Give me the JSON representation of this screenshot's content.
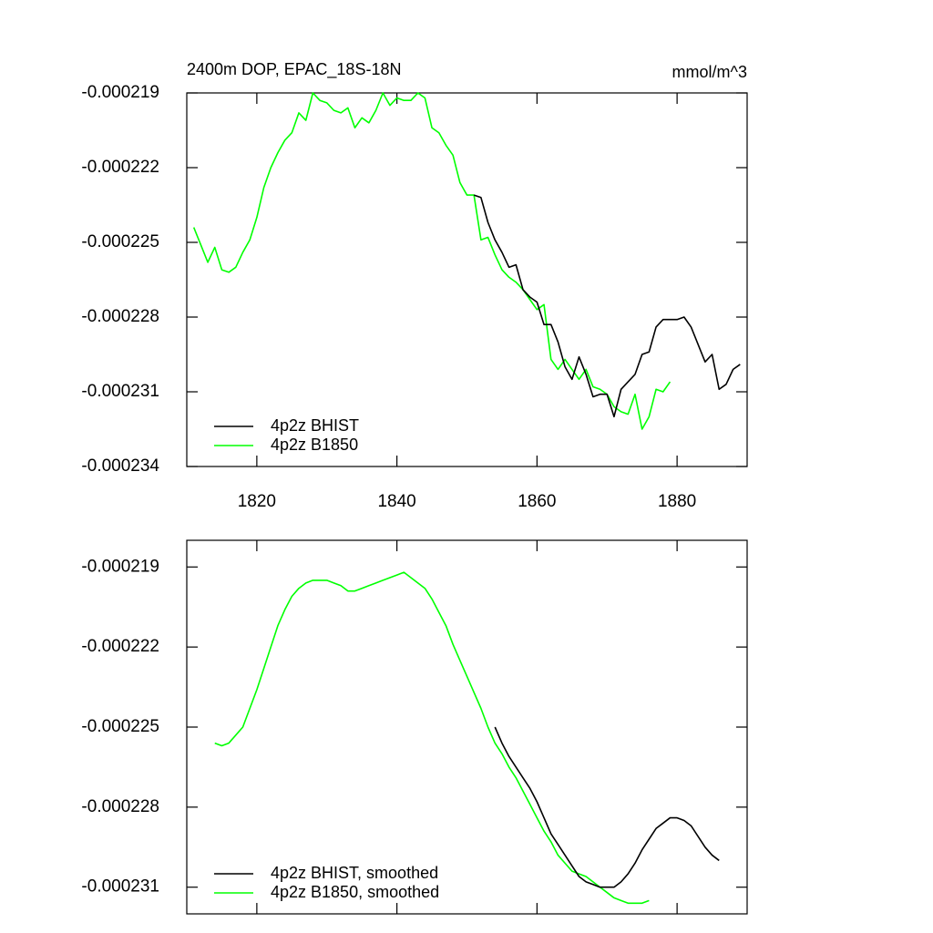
{
  "chart_data": [
    {
      "type": "line",
      "title": "2400m DOP, EPAC_18S-18N",
      "units": "mmol/m^3",
      "x": [
        1811,
        1812,
        1813,
        1814,
        1815,
        1816,
        1817,
        1818,
        1819,
        1820,
        1821,
        1822,
        1823,
        1824,
        1825,
        1826,
        1827,
        1828,
        1829,
        1830,
        1831,
        1832,
        1833,
        1834,
        1835,
        1836,
        1837,
        1838,
        1839,
        1840,
        1841,
        1842,
        1843,
        1844,
        1845,
        1846,
        1847,
        1848,
        1849,
        1850,
        1851,
        1852,
        1853,
        1854,
        1855,
        1856,
        1857,
        1858,
        1859,
        1860,
        1861,
        1862,
        1863,
        1864,
        1865,
        1866,
        1867,
        1868,
        1869,
        1870,
        1871,
        1872,
        1873,
        1874,
        1875,
        1876,
        1877,
        1878,
        1879,
        1880,
        1881,
        1882,
        1883,
        1884,
        1885,
        1886,
        1887,
        1888,
        1889
      ],
      "series": [
        {
          "name": "4p2z BHIST",
          "color": "#000000",
          "values": [
            null,
            null,
            null,
            null,
            null,
            null,
            null,
            null,
            null,
            null,
            null,
            null,
            null,
            null,
            null,
            null,
            null,
            null,
            null,
            null,
            null,
            null,
            null,
            null,
            null,
            null,
            null,
            null,
            null,
            null,
            null,
            null,
            null,
            null,
            null,
            null,
            null,
            null,
            null,
            null,
            -0.0002231,
            -0.0002232,
            -0.0002242,
            -0.0002249,
            -0.0002254,
            -0.000226,
            -0.0002259,
            -0.0002269,
            -0.0002272,
            -0.0002274,
            -0.0002283,
            -0.0002283,
            -0.000229,
            -0.00023,
            -0.0002305,
            -0.0002296,
            -0.0002303,
            -0.0002312,
            -0.0002311,
            -0.0002311,
            -0.000232,
            -0.0002309,
            -0.0002306,
            -0.0002303,
            -0.0002295,
            -0.0002294,
            -0.0002284,
            -0.0002281,
            -0.0002281,
            -0.0002281,
            -0.000228,
            -0.0002284,
            -0.0002291,
            -0.0002298,
            -0.0002295,
            -0.0002309,
            -0.0002307,
            -0.0002301,
            -0.0002299
          ]
        },
        {
          "name": "4p2z B1850",
          "color": "#00ff00",
          "values": [
            -0.0002244,
            -0.0002251,
            -0.0002258,
            -0.0002252,
            -0.0002261,
            -0.0002262,
            -0.000226,
            -0.0002254,
            -0.0002249,
            -0.000224,
            -0.0002228,
            -0.000222,
            -0.0002214,
            -0.0002209,
            -0.0002206,
            -0.0002198,
            -0.0002201,
            -0.000219,
            -0.0002193,
            -0.0002194,
            -0.0002197,
            -0.0002198,
            -0.0002196,
            -0.0002204,
            -0.00022,
            -0.0002202,
            -0.0002197,
            -0.000219,
            -0.0002195,
            -0.0002192,
            -0.0002193,
            -0.0002193,
            -0.000219,
            -0.0002192,
            -0.0002204,
            -0.0002206,
            -0.0002211,
            -0.0002215,
            -0.0002226,
            -0.0002231,
            -0.0002231,
            -0.0002249,
            -0.0002248,
            -0.0002255,
            -0.0002261,
            -0.0002264,
            -0.0002266,
            -0.0002269,
            -0.0002273,
            -0.0002277,
            -0.0002275,
            -0.0002297,
            -0.0002301,
            -0.0002297,
            -0.0002301,
            -0.0002305,
            -0.0002301,
            -0.0002308,
            -0.0002309,
            -0.0002311,
            -0.0002316,
            -0.0002318,
            -0.0002319,
            -0.0002311,
            -0.0002325,
            -0.000232,
            -0.0002309,
            -0.000231,
            -0.0002306,
            null,
            null,
            null,
            null,
            null,
            null,
            null,
            null,
            null,
            null
          ]
        }
      ],
      "xlim": [
        1810,
        1890
      ],
      "xticks": [
        1820,
        1840,
        1860,
        1880
      ],
      "ylim": [
        -0.000234,
        -0.000219
      ],
      "yticks": [
        -0.000219,
        -0.000222,
        -0.000225,
        -0.000228,
        -0.000231,
        -0.000234
      ],
      "legend": "lower left"
    },
    {
      "type": "line",
      "x": [
        1814,
        1815,
        1816,
        1817,
        1818,
        1819,
        1820,
        1821,
        1822,
        1823,
        1824,
        1825,
        1826,
        1827,
        1828,
        1829,
        1830,
        1831,
        1832,
        1833,
        1834,
        1835,
        1836,
        1837,
        1838,
        1839,
        1840,
        1841,
        1842,
        1843,
        1844,
        1845,
        1846,
        1847,
        1848,
        1849,
        1850,
        1851,
        1852,
        1853,
        1854,
        1855,
        1856,
        1857,
        1858,
        1859,
        1860,
        1861,
        1862,
        1863,
        1864,
        1865,
        1866,
        1867,
        1868,
        1869,
        1870,
        1871,
        1872,
        1873,
        1874,
        1875,
        1876,
        1877,
        1878,
        1879,
        1880,
        1881,
        1882,
        1883,
        1884,
        1885,
        1886
      ],
      "series": [
        {
          "name": "4p2z BHIST, smoothed",
          "color": "#000000",
          "values": [
            null,
            null,
            null,
            null,
            null,
            null,
            null,
            null,
            null,
            null,
            null,
            null,
            null,
            null,
            null,
            null,
            null,
            null,
            null,
            null,
            null,
            null,
            null,
            null,
            null,
            null,
            null,
            null,
            null,
            null,
            null,
            null,
            null,
            null,
            null,
            null,
            null,
            null,
            null,
            null,
            -0.000225,
            -0.0002256,
            -0.0002261,
            -0.0002265,
            -0.0002269,
            -0.0002273,
            -0.0002278,
            -0.0002284,
            -0.000229,
            -0.0002294,
            -0.0002298,
            -0.0002302,
            -0.0002306,
            -0.0002308,
            -0.0002309,
            -0.000231,
            -0.000231,
            -0.000231,
            -0.0002308,
            -0.0002305,
            -0.0002301,
            -0.0002296,
            -0.0002292,
            -0.0002288,
            -0.0002286,
            -0.0002284,
            -0.0002284,
            -0.0002285,
            -0.0002287,
            -0.0002291,
            -0.0002295,
            -0.0002298,
            -0.00023
          ]
        },
        {
          "name": "4p2z B1850, smoothed",
          "color": "#00ff00",
          "values": [
            -0.0002256,
            -0.0002257,
            -0.0002256,
            -0.0002253,
            -0.000225,
            -0.0002243,
            -0.0002236,
            -0.0002228,
            -0.000222,
            -0.0002212,
            -0.0002206,
            -0.0002201,
            -0.0002198,
            -0.0002196,
            -0.0002195,
            -0.0002195,
            -0.0002195,
            -0.0002196,
            -0.0002197,
            -0.0002199,
            -0.0002199,
            -0.0002198,
            -0.0002197,
            -0.0002196,
            -0.0002195,
            -0.0002194,
            -0.0002193,
            -0.0002192,
            -0.0002194,
            -0.0002196,
            -0.0002198,
            -0.0002202,
            -0.0002207,
            -0.0002212,
            -0.0002219,
            -0.0002225,
            -0.0002231,
            -0.0002237,
            -0.0002243,
            -0.000225,
            -0.0002256,
            -0.000226,
            -0.0002265,
            -0.0002269,
            -0.0002274,
            -0.0002279,
            -0.0002284,
            -0.0002289,
            -0.0002293,
            -0.0002298,
            -0.0002301,
            -0.0002304,
            -0.0002305,
            -0.0002306,
            -0.0002308,
            -0.000231,
            -0.0002312,
            -0.0002314,
            -0.0002315,
            -0.0002316,
            -0.0002316,
            -0.0002316,
            -0.0002315,
            null,
            null,
            null,
            null,
            null,
            null,
            null,
            null,
            null,
            null
          ]
        }
      ],
      "xlim": [
        1810,
        1890
      ],
      "xticks": [
        1820,
        1840,
        1860,
        1880
      ],
      "ylim": [
        -0.000232,
        -0.000218
      ],
      "yticks": [
        -0.000219,
        -0.000222,
        -0.000225,
        -0.000228,
        -0.000231
      ],
      "legend": "lower left"
    }
  ]
}
